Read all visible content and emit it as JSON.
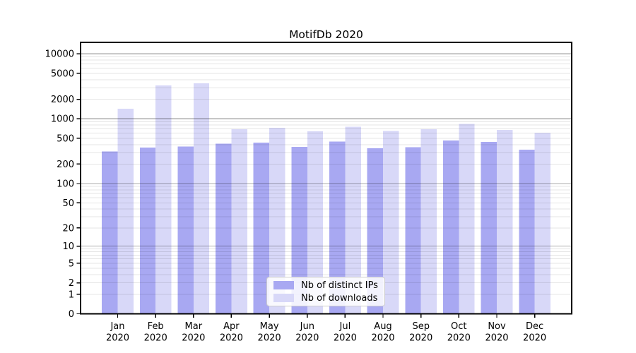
{
  "chart_data": {
    "type": "bar",
    "title": "MotifDb 2020",
    "categories": [
      "Jan 2020",
      "Feb 2020",
      "Mar 2020",
      "Apr 2020",
      "May 2020",
      "Jun 2020",
      "Jul 2020",
      "Aug 2020",
      "Sep 2020",
      "Oct 2020",
      "Nov 2020",
      "Dec 2020"
    ],
    "series": [
      {
        "name": "Nb of distinct IPs",
        "color": "#a8a8f2",
        "values": [
          312,
          362,
          372,
          411,
          429,
          369,
          447,
          353,
          366,
          462,
          443,
          334
        ]
      },
      {
        "name": "Nb of downloads",
        "color": "#d8d8f8",
        "values": [
          1430,
          3280,
          3530,
          695,
          730,
          645,
          750,
          648,
          690,
          830,
          676,
          613
        ]
      }
    ],
    "xlabel": "",
    "ylabel": "",
    "y_axis": {
      "scale": "symlog",
      "min": 0,
      "max": 15000,
      "ticks": [
        0,
        1,
        2,
        5,
        10,
        20,
        50,
        100,
        200,
        500,
        1000,
        2000,
        5000,
        10000
      ]
    },
    "grid": {
      "major_gridline_values": [
        10,
        100,
        1000,
        10000
      ],
      "minor_gridlines": "2-9 per decade",
      "major_color": "#ababab",
      "minor_color": "#e6e6e6"
    },
    "legend": {
      "position": "lower center"
    }
  }
}
